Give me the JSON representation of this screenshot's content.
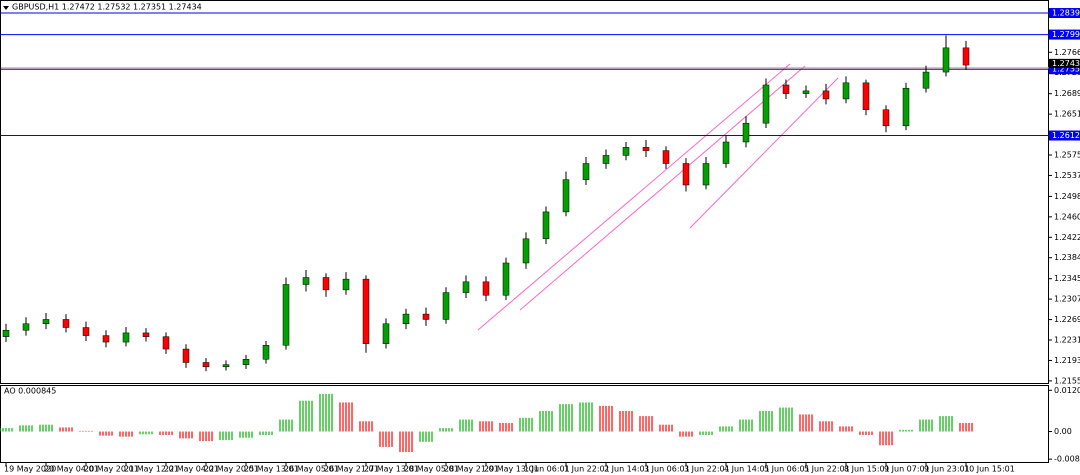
{
  "chart_data": {
    "type": "candlestick",
    "title": "GBPUSD,H1 1.27472 1.27532 1.27351 1.27434",
    "x_labels": [
      "19 May 2020",
      "20 May 04:01",
      "20 May 20:01",
      "21 May 12:01",
      "22 May 04:01",
      "22 May 20:01",
      "25 May 13:01",
      "26 May 05:01",
      "26 May 21:01",
      "27 May 13:01",
      "28 May 05:01",
      "28 May 21:01",
      "29 May 13:01",
      "1 Jun 06:01",
      "1 Jun 22:01",
      "2 Jun 14:01",
      "3 Jun 06:01",
      "3 Jun 22:01",
      "4 Jun 14:01",
      "5 Jun 06:01",
      "5 Jun 22:01",
      "8 Jun 15:01",
      "9 Jun 07:01",
      "9 Jun 23:01",
      "10 Jun 15:01"
    ],
    "open": [
      1.2238,
      1.225,
      1.2262,
      1.227,
      1.2255,
      1.224,
      1.2228,
      1.2245,
      1.2238,
      1.2215,
      1.219,
      1.2182,
      1.2186,
      1.2196,
      1.2222,
      1.2335,
      1.2348,
      1.2325,
      1.2345,
      1.2225,
      1.2262,
      1.228,
      1.227,
      1.232,
      1.234,
      1.2315,
      1.2375,
      1.242,
      1.247,
      1.253,
      1.256,
      1.2575,
      1.259,
      1.2584,
      1.256,
      1.252,
      1.256,
      1.26,
      1.2635,
      1.2706,
      1.269,
      1.2695,
      1.268,
      1.271,
      1.266,
      1.263,
      1.27,
      1.273,
      1.2775
    ],
    "high": [
      1.2262,
      1.2274,
      1.2282,
      1.228,
      1.2266,
      1.225,
      1.2256,
      1.2254,
      1.2246,
      1.2224,
      1.2198,
      1.2194,
      1.2204,
      1.223,
      1.2348,
      1.2362,
      1.2356,
      1.2358,
      1.2352,
      1.2272,
      1.229,
      1.2292,
      1.233,
      1.2352,
      1.235,
      1.2385,
      1.2432,
      1.248,
      1.2545,
      1.2572,
      1.2586,
      1.26,
      1.2604,
      1.2592,
      1.257,
      1.2572,
      1.2612,
      1.2648,
      1.2718,
      1.2716,
      1.2705,
      1.2708,
      1.2722,
      1.2716,
      1.2668,
      1.271,
      1.2742,
      1.2798,
      1.2788
    ],
    "low": [
      1.2228,
      1.224,
      1.2252,
      1.2246,
      1.223,
      1.2218,
      1.222,
      1.2229,
      1.2206,
      1.218,
      1.2174,
      1.2175,
      1.2178,
      1.2188,
      1.2214,
      1.2322,
      1.2312,
      1.2316,
      1.2208,
      1.2216,
      1.2252,
      1.2258,
      1.2262,
      1.231,
      1.2304,
      1.2306,
      1.2364,
      1.241,
      1.2462,
      1.252,
      1.255,
      1.2566,
      1.2572,
      1.255,
      1.2508,
      1.2512,
      1.2552,
      1.259,
      1.2626,
      1.268,
      1.2682,
      1.267,
      1.2672,
      1.265,
      1.2618,
      1.2622,
      1.2692,
      1.2722,
      1.2734
    ],
    "close": [
      1.225,
      1.2262,
      1.227,
      1.2255,
      1.224,
      1.2228,
      1.2245,
      1.2238,
      1.2215,
      1.219,
      1.2182,
      1.2186,
      1.2196,
      1.2222,
      1.2335,
      1.2348,
      1.2325,
      1.2345,
      1.2225,
      1.2262,
      1.228,
      1.227,
      1.232,
      1.234,
      1.2315,
      1.2375,
      1.242,
      1.247,
      1.253,
      1.256,
      1.2575,
      1.259,
      1.2584,
      1.256,
      1.252,
      1.256,
      1.26,
      1.2635,
      1.2706,
      1.269,
      1.2695,
      1.268,
      1.271,
      1.266,
      1.263,
      1.27,
      1.273,
      1.2775,
      1.2743
    ],
    "up_color": "#00a000",
    "down_color": "#ff0000",
    "ylim": [
      1.215,
      1.2864
    ],
    "yticks": [
      1.27668,
      1.27288,
      1.26898,
      1.26518,
      1.25758,
      1.25378,
      1.24988,
      1.24608,
      1.24228,
      1.23848,
      1.23458,
      1.23078,
      1.22698,
      1.22318,
      1.21938,
      1.21558
    ],
    "levels": [
      {
        "value": 1.28398,
        "color": "#0000ff"
      },
      {
        "value": 1.27997,
        "color": "#0000ff"
      },
      {
        "value": 1.27353,
        "color": "#0000ff"
      },
      {
        "value": 1.2612,
        "color": "#0000ff"
      }
    ],
    "bid": 1.27434,
    "indicator": {
      "title": "AO 0.000845",
      "values": [
        0.001,
        0.0018,
        0.002,
        0.0012,
        0.0002,
        -0.0012,
        -0.0015,
        -0.0008,
        -0.001,
        -0.002,
        -0.0028,
        -0.0025,
        -0.0018,
        -0.001,
        0.0035,
        0.009,
        0.011,
        0.0085,
        0.003,
        -0.0045,
        -0.006,
        -0.003,
        0.001,
        0.0035,
        0.003,
        0.0025,
        0.004,
        0.006,
        0.008,
        0.0085,
        0.0075,
        0.006,
        0.0045,
        0.002,
        -0.0015,
        -0.001,
        0.0015,
        0.0035,
        0.006,
        0.007,
        0.005,
        0.003,
        0.0015,
        -0.001,
        -0.004,
        0.0005,
        0.0035,
        0.0045,
        0.0025
      ],
      "ylim": [
        -0.0089,
        0.0133
      ],
      "yticks": [
        0.012052,
        {
          "value": 0,
          "label": "0.00"
        },
        -0.008067
      ],
      "up_color": "#00b000",
      "down_color": "#ff0000"
    }
  }
}
